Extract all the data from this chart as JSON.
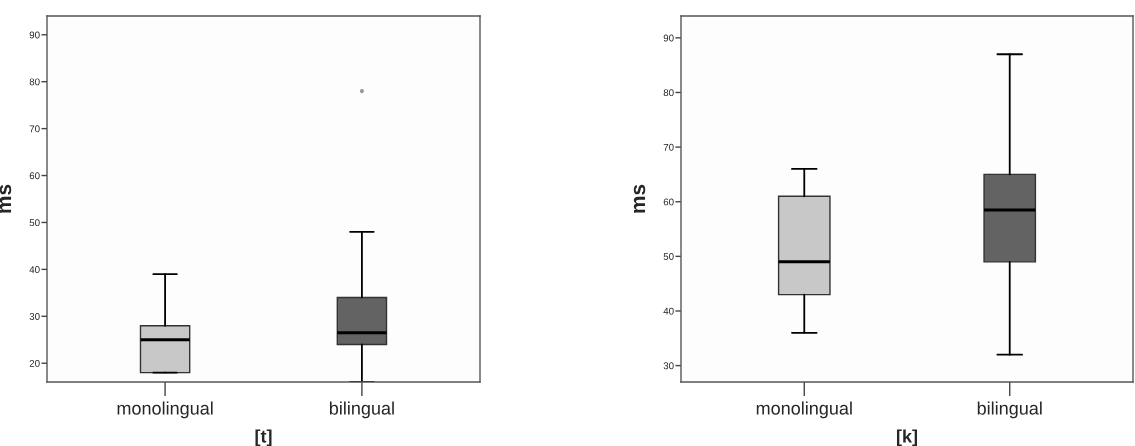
{
  "chart_data": [
    {
      "type": "box",
      "xlabel": "[t]",
      "ylabel": "ms",
      "categories": [
        "monolingual",
        "bilingual"
      ],
      "colors": [
        "#c8c8c8",
        "#636363"
      ],
      "boxes": [
        {
          "low": 18,
          "q1": 18,
          "median": 25,
          "q3": 28,
          "high": 39
        },
        {
          "low": 16,
          "q1": 24,
          "median": 26.5,
          "q3": 34,
          "high": 48,
          "outliers": [
            78
          ]
        }
      ],
      "ylim": [
        16,
        94
      ],
      "yticks": [
        20,
        30,
        40,
        50,
        60,
        70,
        80,
        90
      ]
    },
    {
      "type": "box",
      "xlabel": "[k]",
      "ylabel": "ms",
      "categories": [
        "monolingual",
        "bilingual"
      ],
      "colors": [
        "#c8c8c8",
        "#636363"
      ],
      "boxes": [
        {
          "low": 36,
          "q1": 43,
          "median": 49,
          "q3": 61,
          "high": 66
        },
        {
          "low": 32,
          "q1": 49,
          "median": 58.5,
          "q3": 65,
          "high": 87
        }
      ],
      "ylim": [
        27,
        94
      ],
      "yticks": [
        30,
        40,
        50,
        60,
        70,
        80,
        90
      ]
    }
  ]
}
